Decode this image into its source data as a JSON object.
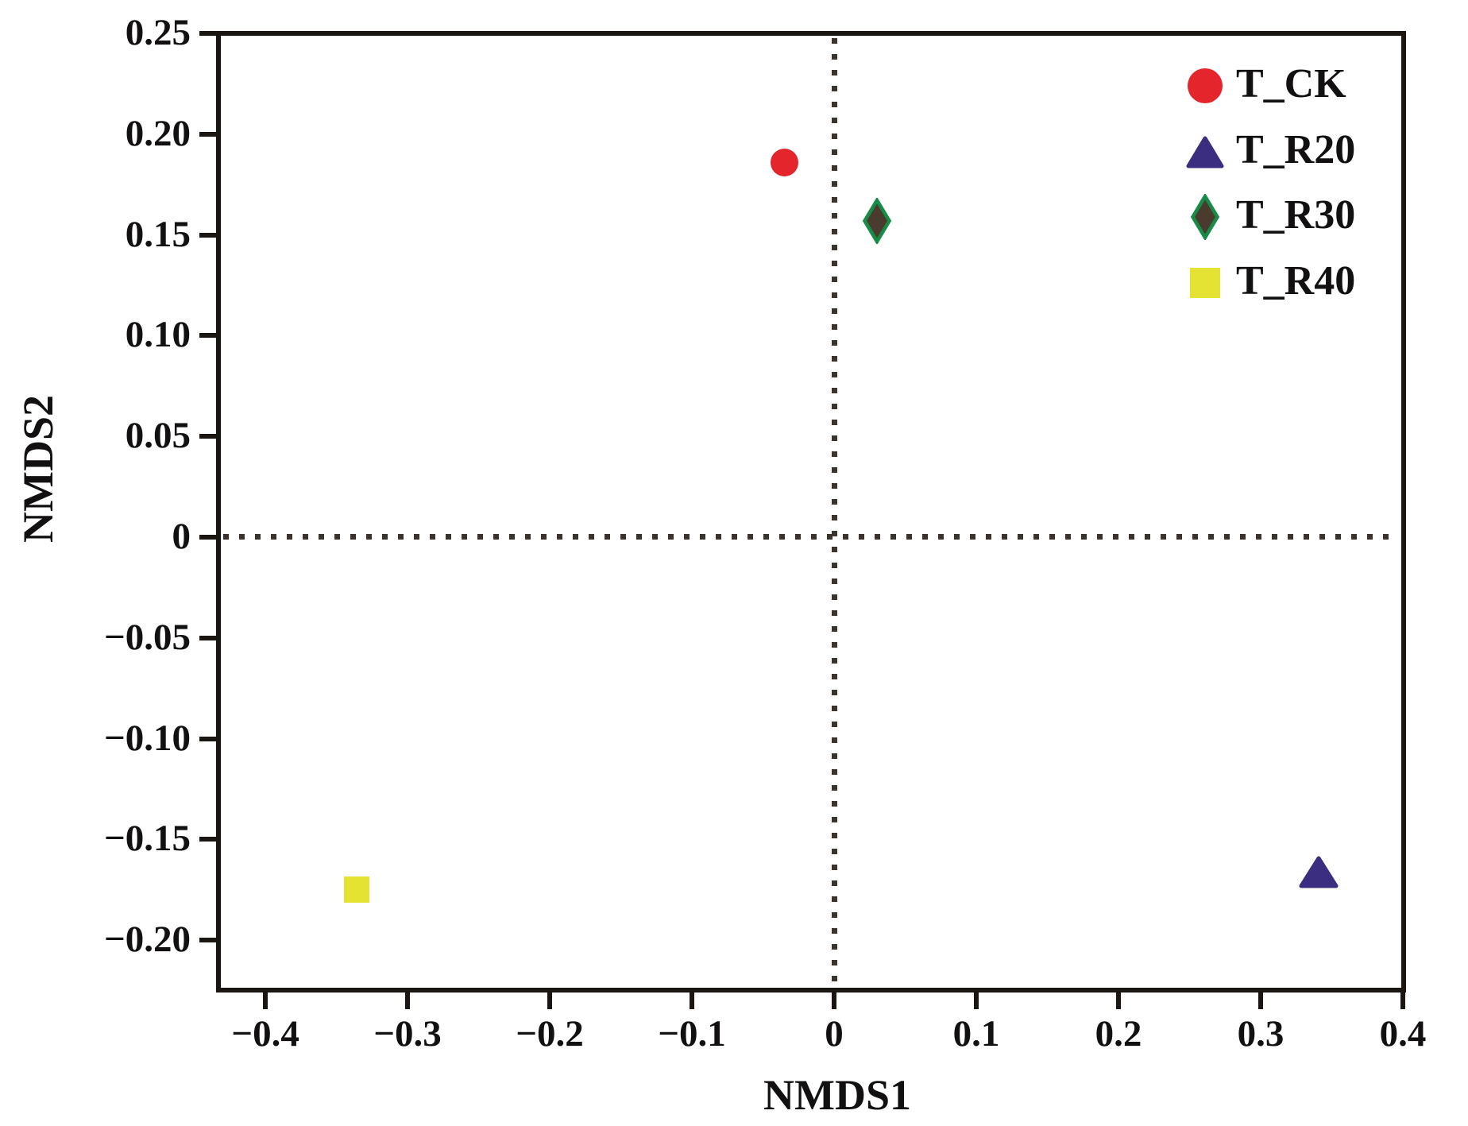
{
  "chart_data": {
    "type": "scatter",
    "title": "",
    "xlabel": "NMDS1",
    "ylabel": "NMDS2",
    "xlim": [
      -0.433,
      0.4
    ],
    "ylim": [
      -0.2248,
      0.25
    ],
    "grid": false,
    "zero_reference_lines": {
      "style": "dotted",
      "color": "#3b332c",
      "x_at": 0,
      "y_at": 0
    },
    "x_ticks": [
      {
        "value": -0.4,
        "label": "−0.4"
      },
      {
        "value": -0.3,
        "label": "−0.3"
      },
      {
        "value": -0.2,
        "label": "−0.2"
      },
      {
        "value": -0.1,
        "label": "−0.1"
      },
      {
        "value": 0,
        "label": "0"
      },
      {
        "value": 0.1,
        "label": "0.1"
      },
      {
        "value": 0.2,
        "label": "0.2"
      },
      {
        "value": 0.3,
        "label": "0.3"
      },
      {
        "value": 0.4,
        "label": "0.4"
      }
    ],
    "y_ticks": [
      {
        "value": 0.25,
        "label": "0.25"
      },
      {
        "value": 0.2,
        "label": "0.20"
      },
      {
        "value": 0.15,
        "label": "0.15"
      },
      {
        "value": 0.1,
        "label": "0.10"
      },
      {
        "value": 0.05,
        "label": "0.05"
      },
      {
        "value": 0,
        "label": "0"
      },
      {
        "value": -0.05,
        "label": "−0.05"
      },
      {
        "value": -0.1,
        "label": "−0.10"
      },
      {
        "value": -0.15,
        "label": "−0.15"
      },
      {
        "value": -0.2,
        "label": "−0.20"
      }
    ],
    "series": [
      {
        "name": "T_CK",
        "marker": "circle",
        "fill": "#e4252b",
        "stroke": "#e4252b",
        "points": [
          {
            "x": -0.035,
            "y": 0.186
          }
        ]
      },
      {
        "name": "T_R20",
        "marker": "triangle",
        "fill": "#3b2d80",
        "stroke": "#3b2d80",
        "points": [
          {
            "x": 0.341,
            "y": -0.166
          }
        ]
      },
      {
        "name": "T_R30",
        "marker": "diamond",
        "fill": "#4a3b2e",
        "stroke": "#168c46",
        "points": [
          {
            "x": 0.03,
            "y": 0.157
          }
        ]
      },
      {
        "name": "T_R40",
        "marker": "square",
        "fill": "#e4e233",
        "stroke": "#e4e233",
        "points": [
          {
            "x": -0.336,
            "y": -0.175
          }
        ]
      }
    ],
    "legend": {
      "position": "top-right",
      "inside_plot": true,
      "items": [
        "T_CK",
        "T_R20",
        "T_R30",
        "T_R40"
      ]
    }
  },
  "styles": {
    "background": "#ffffff",
    "axis_color": "#1c1613",
    "text_color": "#121010",
    "dotted_line_color": "#3b332c"
  }
}
